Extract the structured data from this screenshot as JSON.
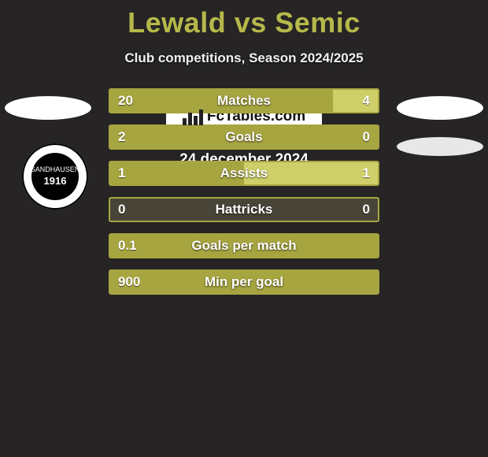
{
  "title_color": "#b6b84a",
  "title": "Lewald vs Semic",
  "subtitle": "Club competitions, Season 2024/2025",
  "logo": {
    "top": "SANDHAUSEN",
    "year": "1916"
  },
  "bars": {
    "track_bg": "#484538",
    "left_color": "#a7a540",
    "right_color": "#cfcf6a",
    "rows": [
      {
        "label": "Matches",
        "left_display": "20",
        "right_display": "4",
        "left_val": 20,
        "right_val": 4,
        "border": "#a7a540"
      },
      {
        "label": "Goals",
        "left_display": "2",
        "right_display": "0",
        "left_val": 2,
        "right_val": 0,
        "border": "#a7a540"
      },
      {
        "label": "Assists",
        "left_display": "1",
        "right_display": "1",
        "left_val": 1,
        "right_val": 1,
        "border": "#a7a540"
      },
      {
        "label": "Hattricks",
        "left_display": "0",
        "right_display": "0",
        "left_val": 0,
        "right_val": 0,
        "border": "#a7a540"
      },
      {
        "label": "Goals per match",
        "left_display": "0.1",
        "right_display": "",
        "left_val": 0.1,
        "right_val": 0,
        "border": "#a7a540",
        "full_left": true
      },
      {
        "label": "Min per goal",
        "left_display": "900",
        "right_display": "",
        "left_val": 900,
        "right_val": 0,
        "border": "#a7a540",
        "full_left": true
      }
    ]
  },
  "watermark": "FcTables.com",
  "date": "24 december 2024"
}
